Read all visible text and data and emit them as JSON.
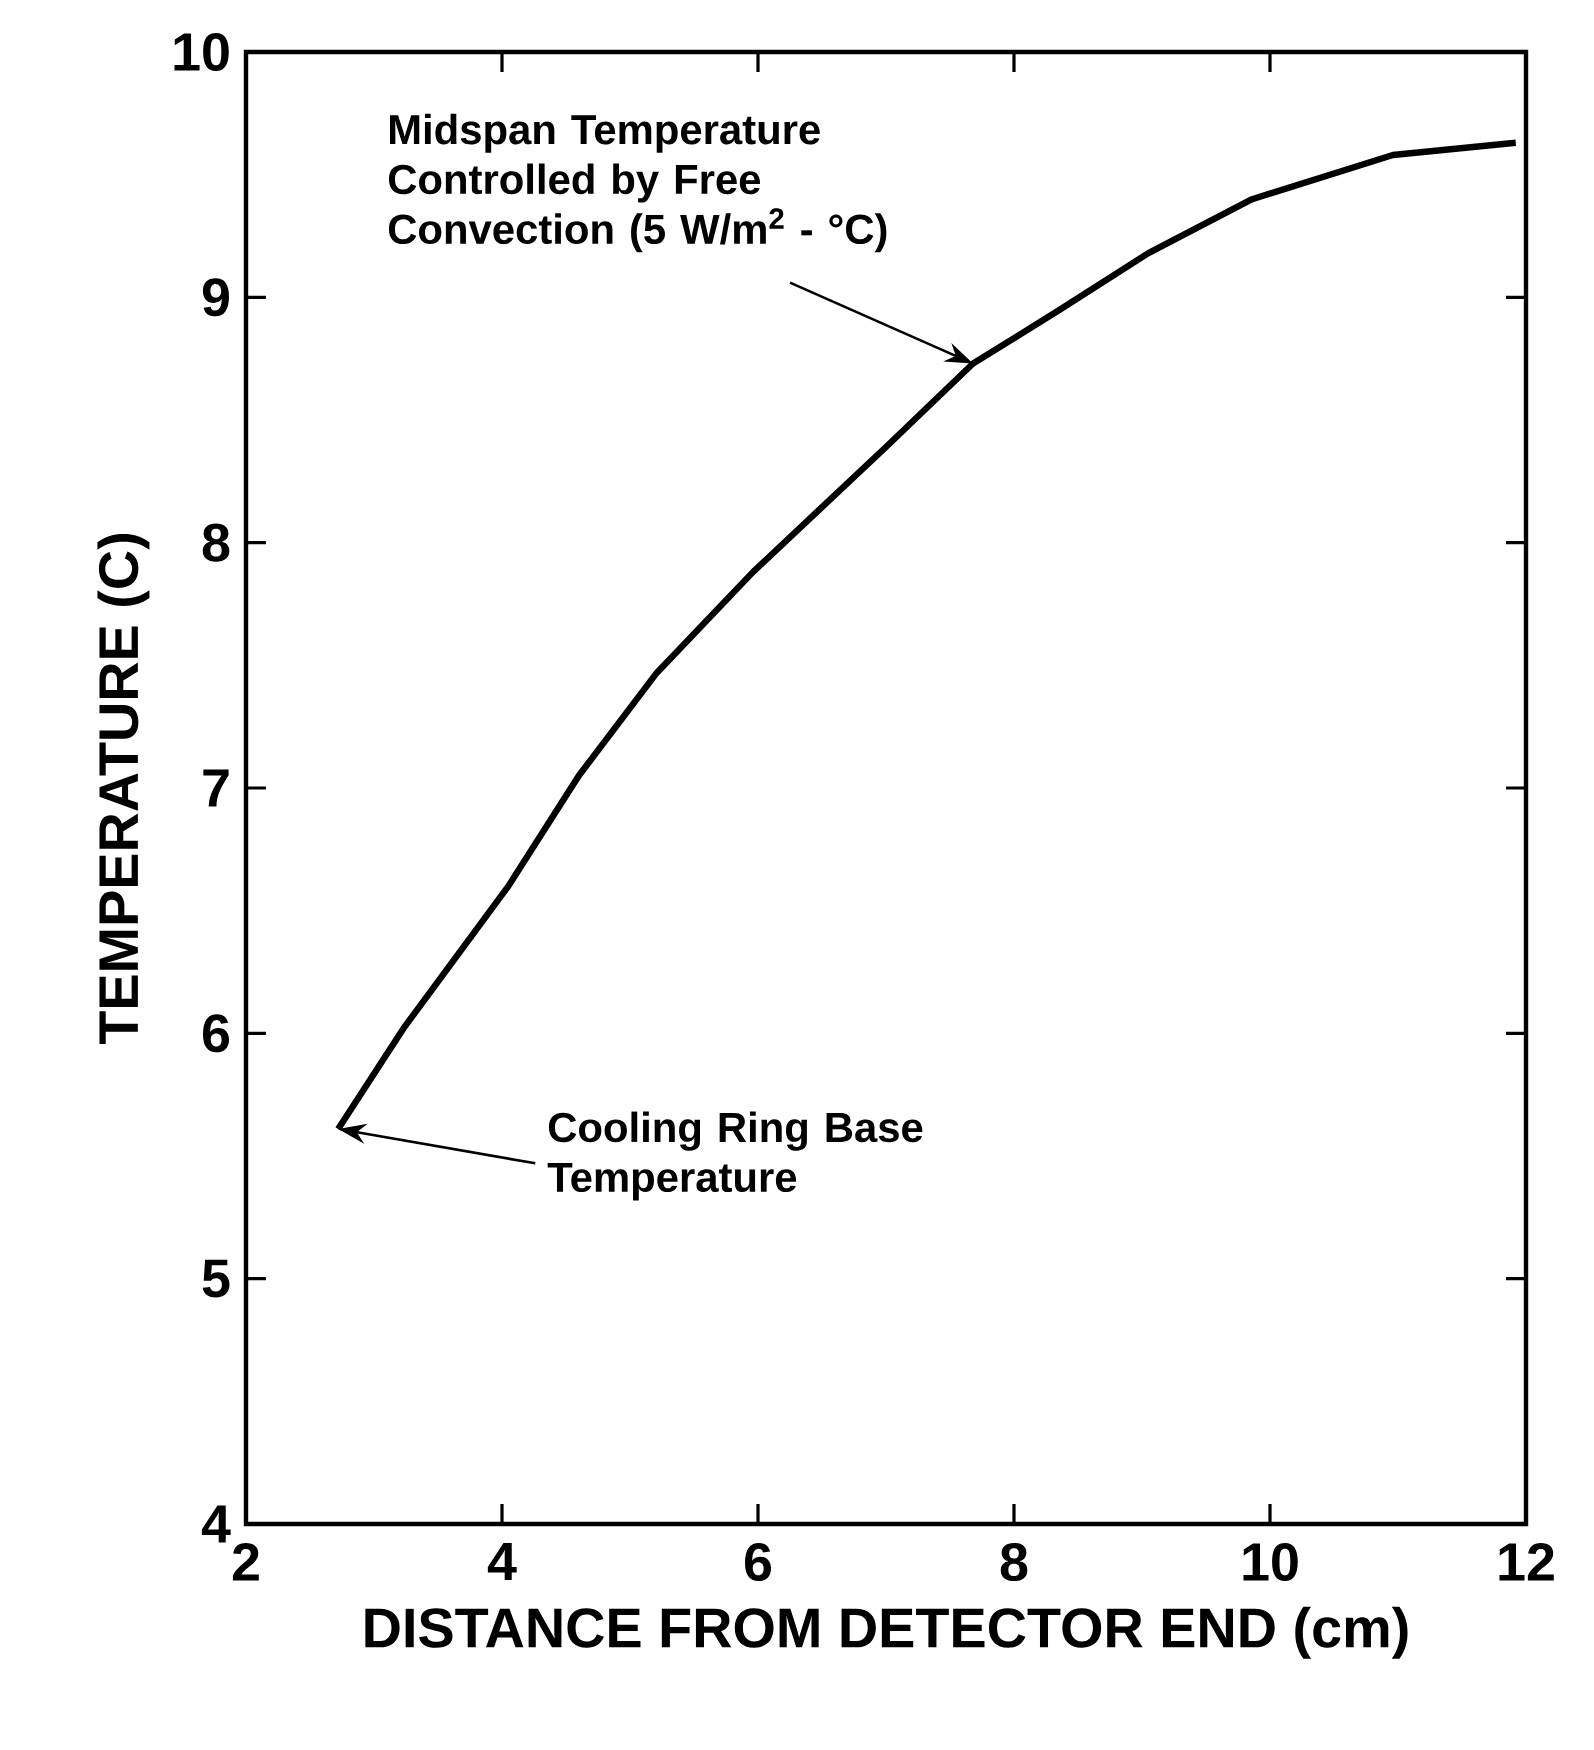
{
  "chart_data": {
    "type": "line",
    "xlabel": "DISTANCE FROM DETECTOR END (cm)",
    "ylabel": "TEMPERATURE (C)",
    "xlim": [
      2,
      12
    ],
    "ylim": [
      4,
      10
    ],
    "xticks": [
      2,
      4,
      6,
      8,
      10,
      12
    ],
    "yticks": [
      4,
      5,
      6,
      7,
      8,
      9,
      10
    ],
    "x": [
      2.72,
      3.23,
      4.05,
      4.6,
      5.21,
      5.96,
      7.0,
      7.68,
      8.36,
      9.05,
      9.86,
      10.96,
      11.92
    ],
    "series": [
      {
        "color": "#000000",
        "values": [
          5.61,
          6.02,
          6.6,
          7.05,
          7.47,
          7.88,
          8.39,
          8.73,
          8.95,
          9.18,
          9.4,
          9.58,
          9.63
        ]
      }
    ],
    "grid": false,
    "marker": "none",
    "line_style": "solid",
    "annotations": [
      {
        "text": "Midspan Temperature Controlled by Free Convection (5 W/m$^{2}$ - °C)",
        "x": 7.68,
        "y": 8.73
      },
      {
        "text": "Cooling Ring Base Temperature",
        "x": 2.72,
        "y": 5.61
      }
    ]
  }
}
